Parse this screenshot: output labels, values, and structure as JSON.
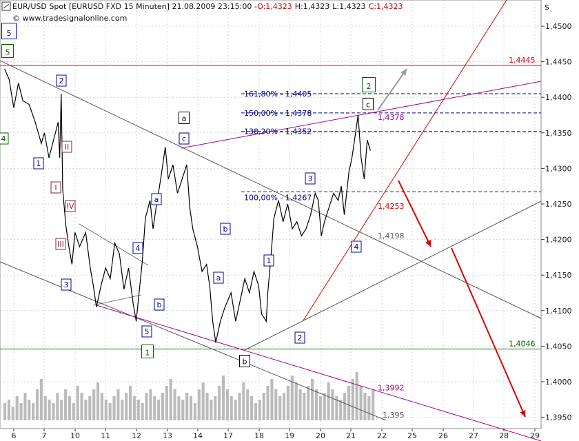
{
  "header": {
    "line1": "EUR/USD Spot [EURUSD FXD  15 Minuten] 21.08.2009 23:15:00 -",
    "o_text": "O:1,4323",
    "h_text": "H:1,4323",
    "l_text": "L:1,4323",
    "c_text": "C:1,4323",
    "line2": "© www.tradesignalonline.com"
  },
  "colors": {
    "price": "#000000",
    "red_line": "#dd0000",
    "magenta_line": "#aa0088",
    "green_line": "#006600",
    "grey_line": "#555555",
    "fib_dash": "#000088",
    "grid": "#cccccc",
    "volume": "#bbbbbb",
    "arrow_red": "#dd0000",
    "arrow_grey": "#999999"
  },
  "chart_data": {
    "type": "line",
    "title": "EUR/USD Spot [EURUSD FXD  15 Minuten]",
    "ylabel": "$",
    "ylim": [
      1.393,
      1.4535
    ],
    "y_ticks": [
      "1,4500",
      "1,4450",
      "1,4400",
      "1,4350",
      "1,4300",
      "1,4250",
      "1,4200",
      "1,4150",
      "1,4100",
      "1,4050",
      "1,4000",
      "1,3950"
    ],
    "y_tick_values": [
      1.45,
      1.445,
      1.44,
      1.435,
      1.43,
      1.425,
      1.42,
      1.415,
      1.41,
      1.405,
      1.4,
      1.395
    ],
    "x_ticks": [
      "6",
      "7",
      "10",
      "11",
      "12",
      "13",
      "14",
      "17",
      "18",
      "19",
      "20",
      "21",
      "22",
      "25",
      "26",
      "27",
      "28",
      "29"
    ],
    "x_tick_days": [
      6,
      7,
      10,
      11,
      12,
      13,
      14,
      17,
      18,
      19,
      20,
      21,
      22,
      25,
      26,
      27,
      28,
      29
    ],
    "series": [
      {
        "points": [
          [
            5.7,
            1.444
          ],
          [
            5.85,
            1.4425
          ],
          [
            6.0,
            1.4385
          ],
          [
            6.15,
            1.442
          ],
          [
            6.3,
            1.4395
          ],
          [
            6.5,
            1.439
          ],
          [
            6.7,
            1.4365
          ],
          [
            6.9,
            1.4335
          ],
          [
            7.0,
            1.435
          ],
          [
            7.15,
            1.4315
          ],
          [
            7.3,
            1.434
          ],
          [
            7.45,
            1.4365
          ],
          [
            7.5,
            1.4315
          ],
          [
            7.55,
            1.4405
          ],
          [
            7.6,
            1.427
          ],
          [
            7.7,
            1.422
          ],
          [
            7.8,
            1.419
          ],
          [
            7.9,
            1.4165
          ],
          [
            8.0,
            1.421
          ],
          [
            8.15,
            1.419
          ],
          [
            8.35,
            1.421
          ],
          [
            8.5,
            1.416
          ],
          [
            8.6,
            1.4135
          ],
          [
            8.7,
            1.4105
          ],
          [
            8.85,
            1.4135
          ],
          [
            9.0,
            1.416
          ],
          [
            9.15,
            1.4145
          ],
          [
            9.3,
            1.4195
          ],
          [
            9.45,
            1.418
          ],
          [
            9.6,
            1.413
          ],
          [
            9.75,
            1.416
          ],
          [
            9.9,
            1.411
          ],
          [
            10.0,
            1.4085
          ],
          [
            10.2,
            1.417
          ],
          [
            10.3,
            1.423
          ],
          [
            10.45,
            1.4255
          ],
          [
            10.55,
            1.4215
          ],
          [
            10.65,
            1.4245
          ],
          [
            10.8,
            1.4285
          ],
          [
            10.95,
            1.433
          ],
          [
            11.05,
            1.4285
          ],
          [
            11.2,
            1.4305
          ],
          [
            11.35,
            1.4265
          ],
          [
            11.5,
            1.4285
          ],
          [
            11.65,
            1.4305
          ],
          [
            11.75,
            1.4245
          ],
          [
            11.85,
            1.4215
          ],
          [
            12.0,
            1.419
          ],
          [
            12.15,
            1.4155
          ],
          [
            12.3,
            1.4165
          ],
          [
            12.4,
            1.4135
          ],
          [
            12.5,
            1.4085
          ],
          [
            12.6,
            1.4055
          ],
          [
            12.75,
            1.4085
          ],
          [
            12.9,
            1.4105
          ],
          [
            13.1,
            1.4125
          ],
          [
            13.25,
            1.4085
          ],
          [
            13.4,
            1.4115
          ],
          [
            13.55,
            1.4145
          ],
          [
            13.7,
            1.4125
          ],
          [
            13.85,
            1.4155
          ],
          [
            14.0,
            1.4135
          ],
          [
            14.1,
            1.4095
          ],
          [
            14.25,
            1.4085
          ],
          [
            14.3,
            1.4125
          ],
          [
            14.4,
            1.4175
          ],
          [
            14.5,
            1.423
          ],
          [
            14.65,
            1.4255
          ],
          [
            14.8,
            1.4225
          ],
          [
            14.95,
            1.425
          ],
          [
            15.1,
            1.4215
          ],
          [
            15.25,
            1.4225
          ],
          [
            15.4,
            1.4205
          ],
          [
            15.55,
            1.4215
          ],
          [
            15.7,
            1.4235
          ],
          [
            15.85,
            1.4265
          ],
          [
            15.95,
            1.4255
          ],
          [
            16.05,
            1.4205
          ],
          [
            16.15,
            1.4225
          ],
          [
            16.3,
            1.4245
          ],
          [
            16.45,
            1.4265
          ],
          [
            16.6,
            1.4255
          ],
          [
            16.7,
            1.4275
          ],
          [
            16.8,
            1.4235
          ],
          [
            16.95,
            1.4295
          ],
          [
            17.05,
            1.4315
          ],
          [
            17.15,
            1.4345
          ],
          [
            17.25,
            1.4375
          ],
          [
            17.35,
            1.4315
          ],
          [
            17.45,
            1.4285
          ],
          [
            17.55,
            1.434
          ],
          [
            17.65,
            1.4325
          ]
        ]
      }
    ],
    "volume": [
      5,
      6,
      4,
      7,
      5,
      8,
      6,
      5,
      9,
      12,
      7,
      6,
      5,
      8,
      6,
      9,
      7,
      5,
      10,
      8,
      6,
      7,
      9,
      11,
      8,
      6,
      5,
      7,
      9,
      6,
      8,
      10,
      7,
      6,
      5,
      8,
      9,
      7,
      6,
      8,
      10,
      12,
      9,
      7,
      6,
      8,
      7,
      5,
      9,
      11,
      8,
      6,
      7,
      10,
      13,
      9,
      7,
      6,
      8,
      11,
      9,
      7,
      5,
      6,
      8,
      10,
      12,
      9,
      7,
      8,
      10,
      13,
      11,
      9,
      8,
      10,
      12,
      9,
      7,
      8,
      11,
      9,
      7,
      6,
      8,
      10,
      12,
      14,
      10,
      8,
      7,
      9
    ]
  },
  "levels": {
    "red_1445": "1,4445",
    "green_1404": "1,4046",
    "magenta_1392": "1,3992",
    "grey_1395": "1,395",
    "grey_1419": "1,4198",
    "red_1425": "1,4253",
    "magenta_1437": "1,4378"
  },
  "fib": {
    "f161": "161,80% - 1,4405",
    "f150": "150,00% - 1,4378",
    "f138": "138,20% - 1,4352",
    "f100": "100,00% - 1,4267"
  },
  "waves": {
    "w5_big": "5",
    "w5_green": "5",
    "w4_green": "4",
    "w1_blue": "1",
    "w2_blue": "2",
    "wI": "I",
    "wII": "II",
    "wIII": "III",
    "wIV": "IV",
    "w3_blue": "3",
    "w4_blue": "4",
    "w5_blue": "5",
    "w1_green": "1",
    "wa_blue": "a",
    "wb_blue": "b",
    "wc_blue": "c",
    "wa_black": "a",
    "wb_blue2": "b",
    "wa_blue2": "a",
    "wb_black": "b",
    "w1_blue2": "1",
    "w2_blue2": "2",
    "w3_blue2": "3",
    "w4_blue2": "4",
    "w2_green": "2",
    "wc_black": "c"
  }
}
